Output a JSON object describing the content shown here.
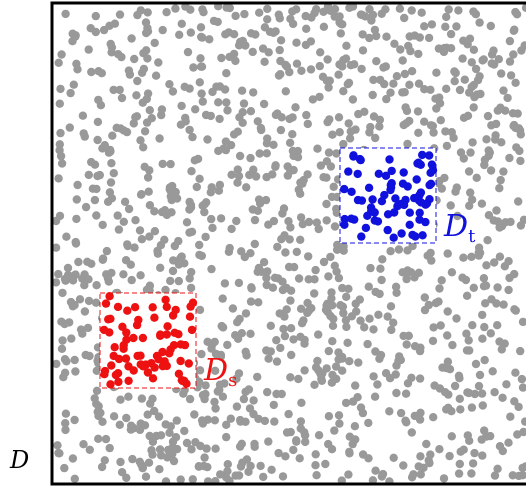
{
  "domain": {
    "label": "D",
    "border_color": "#000000",
    "point_color": "#999999",
    "point_count": 1400
  },
  "source_region": {
    "label_main": "D",
    "label_sub": "s",
    "color": "#ee1111",
    "point_count": 75
  },
  "target_region": {
    "label_main": "D",
    "label_sub": "t",
    "color": "#1111dd",
    "point_count": 75
  }
}
